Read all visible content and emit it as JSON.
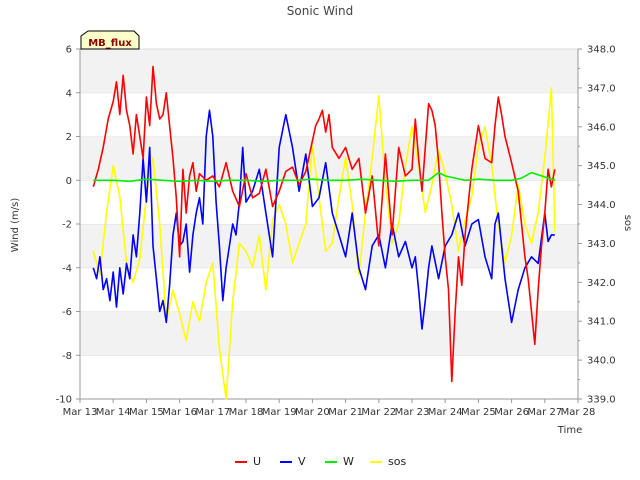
{
  "chart_data": {
    "type": "line",
    "title": "Sonic Wind",
    "badge": "MB_flux",
    "xlabel": "Time",
    "ylabel": "Wind (m/s)",
    "y2label": "sos",
    "x_ticks": [
      "Mar 13",
      "Mar 14",
      "Mar 15",
      "Mar 16",
      "Mar 17",
      "Mar 18",
      "Mar 19",
      "Mar 20",
      "Mar 21",
      "Mar 22",
      "Mar 23",
      "Mar 24",
      "Mar 25",
      "Mar 26",
      "Mar 27",
      "Mar 28"
    ],
    "xlim": [
      13,
      28
    ],
    "ylim": [
      -10,
      6
    ],
    "y_ticks": [
      -10,
      -8,
      -6,
      -4,
      -2,
      0,
      2,
      4,
      6
    ],
    "y2lim": [
      339.0,
      348.0
    ],
    "y2_ticks": [
      "339.0",
      "340.0",
      "341.0",
      "342.0",
      "343.0",
      "344.0",
      "345.0",
      "346.0",
      "347.0",
      "348.0"
    ],
    "series": [
      {
        "name": "U",
        "color": "#ff0000",
        "axis": "left",
        "x": [
          13.4,
          13.55,
          13.7,
          13.85,
          14.0,
          14.1,
          14.2,
          14.3,
          14.4,
          14.5,
          14.6,
          14.7,
          14.8,
          14.9,
          15.0,
          15.1,
          15.2,
          15.3,
          15.4,
          15.5,
          15.6,
          15.7,
          15.8,
          15.9,
          16.0,
          16.1,
          16.2,
          16.3,
          16.4,
          16.5,
          16.6,
          16.8,
          17.0,
          17.2,
          17.4,
          17.6,
          17.8,
          18.0,
          18.2,
          18.4,
          18.6,
          18.8,
          19.0,
          19.2,
          19.4,
          19.6,
          19.8,
          20.0,
          20.1,
          20.2,
          20.3,
          20.4,
          20.5,
          20.6,
          20.8,
          21.0,
          21.2,
          21.4,
          21.6,
          21.8,
          22.0,
          22.2,
          22.4,
          22.6,
          22.8,
          23.0,
          23.1,
          23.2,
          23.3,
          23.4,
          23.5,
          23.6,
          23.7,
          23.8,
          23.9,
          24.0,
          24.1,
          24.2,
          24.3,
          24.4,
          24.5,
          24.6,
          24.7,
          24.8,
          25.0,
          25.2,
          25.4,
          25.5,
          25.6,
          25.7,
          25.8,
          26.0,
          26.2,
          26.4,
          26.5,
          26.6,
          26.7,
          26.8,
          26.9,
          27.0,
          27.1,
          27.2,
          27.3
        ],
        "y": [
          -0.3,
          0.5,
          1.5,
          2.8,
          3.6,
          4.5,
          3.0,
          4.8,
          3.2,
          2.5,
          1.2,
          3.0,
          2.0,
          1.0,
          3.8,
          2.5,
          5.2,
          3.5,
          2.8,
          3.0,
          4.0,
          2.5,
          1.0,
          -0.8,
          -3.5,
          0.5,
          -1.5,
          0.2,
          0.8,
          -0.5,
          0.3,
          0.0,
          0.2,
          -0.3,
          0.8,
          -0.5,
          -1.2,
          0.3,
          -0.8,
          -0.6,
          0.5,
          -1.2,
          -0.5,
          0.4,
          0.6,
          -0.2,
          0.4,
          1.8,
          2.5,
          2.8,
          3.2,
          2.2,
          3.0,
          1.5,
          1.0,
          1.5,
          0.5,
          1.0,
          -1.5,
          0.2,
          -3.0,
          1.2,
          -2.5,
          1.5,
          0.2,
          0.5,
          2.8,
          1.0,
          -0.5,
          1.5,
          3.5,
          3.2,
          2.5,
          0.8,
          -1.5,
          -3.5,
          -5.0,
          -9.2,
          -6.0,
          -3.5,
          -4.8,
          -2.5,
          -1.0,
          0.5,
          2.5,
          1.0,
          0.8,
          2.5,
          3.8,
          3.0,
          2.0,
          0.8,
          -0.5,
          -3.5,
          -4.5,
          -6.0,
          -7.5,
          -5.0,
          -3.0,
          -1.5,
          0.5,
          -0.3,
          0.5
        ]
      },
      {
        "name": "V",
        "color": "#0000ff",
        "axis": "left",
        "x": [
          13.4,
          13.5,
          13.6,
          13.7,
          13.8,
          13.9,
          14.0,
          14.1,
          14.2,
          14.3,
          14.4,
          14.5,
          14.6,
          14.7,
          14.8,
          14.9,
          15.0,
          15.1,
          15.2,
          15.3,
          15.4,
          15.5,
          15.6,
          15.7,
          15.8,
          15.9,
          16.0,
          16.1,
          16.2,
          16.3,
          16.4,
          16.5,
          16.6,
          16.7,
          16.8,
          16.9,
          17.0,
          17.1,
          17.2,
          17.3,
          17.4,
          17.5,
          17.6,
          17.7,
          17.8,
          17.9,
          18.0,
          18.2,
          18.4,
          18.6,
          18.8,
          19.0,
          19.2,
          19.4,
          19.6,
          19.8,
          20.0,
          20.2,
          20.4,
          20.6,
          20.8,
          21.0,
          21.2,
          21.4,
          21.6,
          21.8,
          22.0,
          22.2,
          22.4,
          22.6,
          22.8,
          23.0,
          23.1,
          23.2,
          23.3,
          23.4,
          23.5,
          23.6,
          23.8,
          24.0,
          24.2,
          24.4,
          24.6,
          24.8,
          25.0,
          25.2,
          25.4,
          25.5,
          25.6,
          25.8,
          26.0,
          26.2,
          26.4,
          26.6,
          26.8,
          27.0,
          27.1,
          27.2,
          27.3
        ],
        "y": [
          -4.0,
          -4.5,
          -3.5,
          -5.0,
          -4.5,
          -5.5,
          -4.2,
          -5.8,
          -4.0,
          -5.2,
          -3.8,
          -4.5,
          -2.5,
          -3.5,
          -1.5,
          1.0,
          -1.0,
          1.5,
          -3.0,
          -4.5,
          -6.0,
          -5.5,
          -6.5,
          -4.8,
          -2.5,
          -1.5,
          -3.0,
          -2.8,
          -2.0,
          -4.2,
          -2.5,
          -1.5,
          -0.8,
          -2.0,
          2.0,
          3.2,
          2.0,
          -1.0,
          -3.0,
          -5.5,
          -4.0,
          -3.0,
          -2.0,
          -2.5,
          -1.0,
          1.5,
          -1.0,
          -0.5,
          0.5,
          -1.5,
          -3.5,
          1.5,
          3.0,
          1.5,
          -0.5,
          1.2,
          -1.2,
          -0.8,
          0.8,
          -1.5,
          -2.5,
          -3.5,
          -1.5,
          -4.0,
          -5.0,
          -3.0,
          -2.5,
          -4.0,
          -2.0,
          -3.5,
          -2.8,
          -4.0,
          -3.5,
          -5.0,
          -6.8,
          -5.5,
          -4.0,
          -3.0,
          -4.5,
          -3.0,
          -2.5,
          -1.5,
          -3.0,
          -2.0,
          -1.8,
          -3.5,
          -4.5,
          -2.0,
          -1.5,
          -4.5,
          -6.5,
          -5.0,
          -4.0,
          -3.5,
          -3.8,
          -1.5,
          -2.8,
          -2.5,
          -2.5
        ]
      },
      {
        "name": "W",
        "color": "#00ee00",
        "axis": "left",
        "x": [
          13.4,
          14.0,
          14.5,
          15.0,
          15.5,
          16.0,
          16.5,
          17.0,
          17.5,
          18.0,
          18.5,
          19.0,
          19.5,
          20.0,
          20.5,
          21.0,
          21.5,
          22.0,
          22.5,
          23.0,
          23.5,
          23.8,
          24.0,
          24.3,
          24.6,
          25.0,
          25.5,
          26.0,
          26.3,
          26.6,
          26.9,
          27.1,
          27.3
        ],
        "y": [
          0.0,
          0.0,
          -0.05,
          0.05,
          0.0,
          -0.05,
          0.0,
          -0.05,
          0.0,
          0.0,
          -0.05,
          0.0,
          0.0,
          0.05,
          0.0,
          0.0,
          0.05,
          0.0,
          -0.05,
          0.0,
          0.0,
          0.35,
          0.2,
          0.1,
          0.0,
          0.05,
          0.0,
          0.0,
          0.1,
          0.35,
          0.2,
          0.1,
          0.0
        ]
      },
      {
        "name": "sos",
        "color": "#ffff00",
        "axis": "right",
        "x": [
          13.4,
          13.6,
          13.8,
          14.0,
          14.2,
          14.4,
          14.6,
          14.8,
          15.0,
          15.2,
          15.4,
          15.6,
          15.8,
          16.0,
          16.2,
          16.4,
          16.6,
          16.8,
          17.0,
          17.2,
          17.4,
          17.6,
          17.8,
          18.0,
          18.2,
          18.4,
          18.6,
          18.8,
          19.0,
          19.2,
          19.4,
          19.6,
          19.8,
          20.0,
          20.2,
          20.4,
          20.6,
          20.8,
          21.0,
          21.2,
          21.4,
          21.6,
          21.8,
          22.0,
          22.2,
          22.4,
          22.6,
          22.8,
          23.0,
          23.2,
          23.4,
          23.6,
          23.8,
          24.0,
          24.2,
          24.4,
          24.6,
          24.8,
          25.0,
          25.2,
          25.4,
          25.6,
          25.8,
          26.0,
          26.2,
          26.4,
          26.6,
          26.8,
          27.0,
          27.2,
          27.3
        ],
        "y": [
          342.8,
          342.2,
          343.8,
          345.0,
          344.2,
          342.5,
          342.0,
          342.6,
          344.2,
          345.2,
          343.5,
          341.0,
          341.8,
          341.2,
          340.5,
          341.5,
          341.0,
          342.0,
          342.5,
          340.3,
          339.0,
          341.5,
          343.0,
          342.8,
          342.4,
          343.2,
          341.8,
          343.6,
          344.0,
          343.5,
          342.5,
          343.0,
          343.5,
          345.5,
          344.2,
          342.8,
          343.0,
          344.2,
          345.2,
          344.0,
          342.2,
          343.8,
          345.2,
          346.8,
          344.6,
          343.0,
          343.5,
          345.0,
          346.0,
          345.0,
          343.8,
          344.5,
          345.4,
          344.8,
          344.0,
          342.8,
          343.6,
          344.2,
          345.5,
          346.0,
          345.0,
          343.5,
          342.5,
          343.2,
          344.5,
          343.5,
          343.0,
          343.8,
          345.2,
          347.0,
          343.3
        ]
      }
    ],
    "legend": [
      "U",
      "V",
      "W",
      "sos"
    ],
    "legend_position": "bottom-center",
    "grid": true
  }
}
